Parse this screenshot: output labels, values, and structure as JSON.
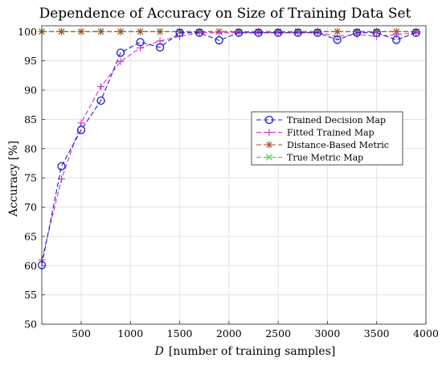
{
  "chart_data": {
    "type": "line",
    "title": "Dependence of Accuracy on Size of Training Data Set",
    "xlabel_var": "D",
    "xlabel_rest": "[number of training samples]",
    "ylabel": "Accuracy [%]",
    "xlim": [
      100,
      4000
    ],
    "ylim": [
      50,
      101
    ],
    "xticks": [
      500,
      1000,
      1500,
      2000,
      2500,
      3000,
      3500,
      4000
    ],
    "yticks": [
      50,
      55,
      60,
      65,
      70,
      75,
      80,
      85,
      90,
      95,
      100
    ],
    "grid": true,
    "legend_position": "center-right",
    "x": [
      100,
      300,
      500,
      700,
      900,
      1100,
      1300,
      1500,
      1700,
      1900,
      2100,
      2300,
      2500,
      2700,
      2900,
      3100,
      3300,
      3500,
      3700,
      3900
    ],
    "series": [
      {
        "name": "Trained Decision Map",
        "marker": "circle",
        "color": "#1a1ad6",
        "values": [
          60.1,
          77.0,
          83.2,
          88.2,
          96.4,
          98.2,
          97.3,
          99.8,
          99.8,
          98.5,
          99.8,
          99.8,
          99.8,
          99.8,
          99.8,
          98.6,
          99.8,
          99.8,
          98.6,
          99.8
        ]
      },
      {
        "name": "Fitted Trained Map",
        "marker": "plus",
        "color": "#cc33cc",
        "values": [
          61.0,
          74.8,
          84.4,
          90.6,
          94.9,
          97.2,
          98.4,
          99.2,
          99.8,
          99.8,
          99.8,
          99.8,
          99.8,
          99.8,
          99.8,
          99.2,
          99.5,
          99.2,
          99.5,
          99.8
        ]
      },
      {
        "name": "Distance-Based Metric",
        "marker": "asterisk",
        "color": "#a0522d",
        "values": [
          100,
          100,
          100,
          100,
          100,
          100,
          100,
          100,
          100,
          100,
          100,
          100,
          100,
          100,
          100,
          100,
          100,
          100,
          100,
          100
        ]
      },
      {
        "name": "True Metric Map",
        "marker": "cross",
        "color": "#33cc33",
        "values": [
          100,
          100,
          100,
          100,
          100,
          100,
          100,
          100,
          100,
          100,
          100,
          100,
          100,
          100,
          100,
          100,
          100,
          100,
          100,
          100
        ]
      }
    ]
  }
}
